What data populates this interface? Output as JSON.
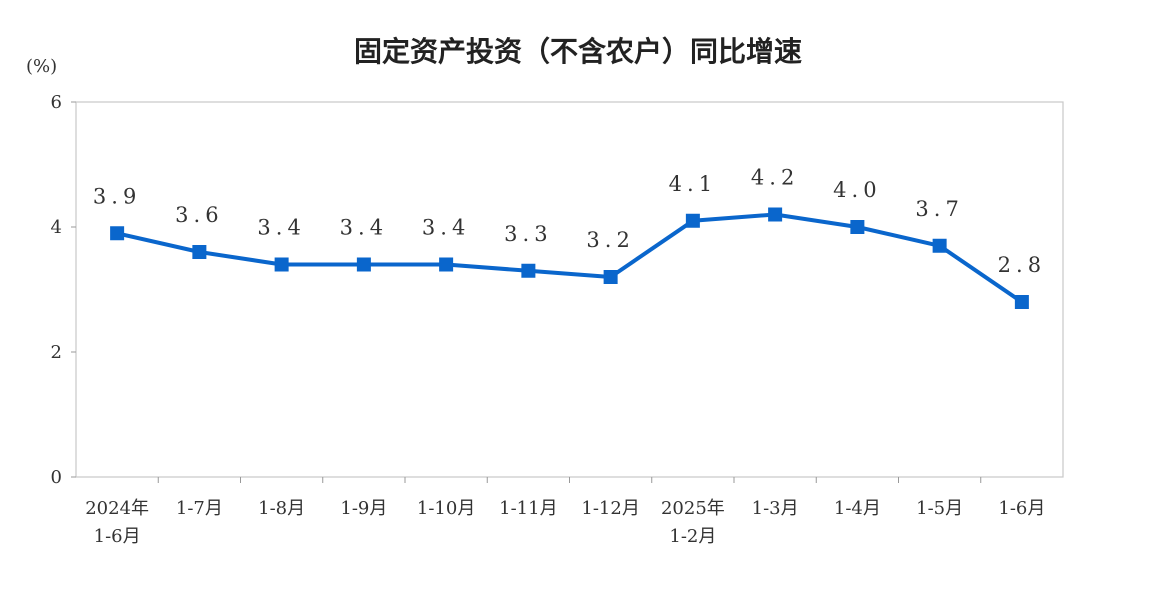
{
  "chart_data": {
    "type": "line",
    "title": "固定资产投资（不含农户）同比增速",
    "ylabel": "(%)",
    "xlabel": "",
    "ylim": [
      0,
      6
    ],
    "yticks": [
      0,
      2,
      4,
      6
    ],
    "grid": false,
    "legend": "none",
    "categories": [
      [
        "2024年",
        "1-6月"
      ],
      [
        "1-7月"
      ],
      [
        "1-8月"
      ],
      [
        "1-9月"
      ],
      [
        "1-10月"
      ],
      [
        "1-11月"
      ],
      [
        "1-12月"
      ],
      [
        "2025年",
        "1-2月"
      ],
      [
        "1-3月"
      ],
      [
        "1-4月"
      ],
      [
        "1-5月"
      ],
      [
        "1-6月"
      ]
    ],
    "series": [
      {
        "values": [
          3.9,
          3.6,
          3.4,
          3.4,
          3.4,
          3.3,
          3.2,
          4.1,
          4.2,
          4.0,
          3.7,
          2.8
        ],
        "labels": [
          "3.9",
          "3.6",
          "3.4",
          "3.4",
          "3.4",
          "3.3",
          "3.2",
          "4.1",
          "4.2",
          "4.0",
          "3.7",
          "2.8"
        ],
        "color": "#0a66cc"
      }
    ]
  }
}
